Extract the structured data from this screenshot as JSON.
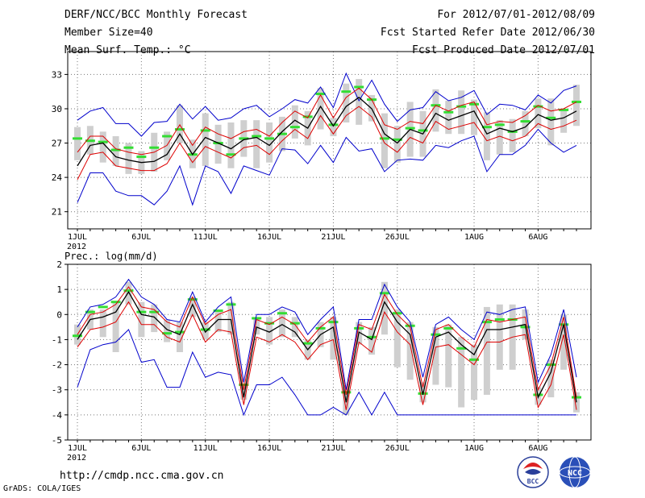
{
  "header": {
    "title": "DERF/NCC/BCC Monthly Forecast",
    "member_size": "Member Size=40",
    "variable": "Mean Surf. Temp.: °C",
    "period": "For 2012/07/01-2012/08/09",
    "started": "Fcst Started Refer Date 2012/06/30",
    "produced": "Fcst Produced Date 2012/07/01"
  },
  "footer": {
    "url": "http://cmdp.ncc.cma.gov.cn",
    "grads": "GrADS: COLA/IGES",
    "logo_bcc_text": "BCC",
    "logo_ncc_text": "NCC"
  },
  "colors": {
    "mean": "#000000",
    "spread": "#dd0000",
    "envelope": "#0000cc",
    "bar": "#cfcfcf",
    "median": "#33dd33",
    "grid": "#777777"
  },
  "chart_data": [
    {
      "type": "line",
      "title": "Mean Surf. Temp.: °C",
      "xlabel": "",
      "ylabel": "",
      "ylim": [
        19.5,
        35
      ],
      "yticks": [
        21,
        24,
        27,
        30,
        33
      ],
      "days": 40,
      "xtick_labels": [
        {
          "day": 1,
          "label": "1JUL"
        },
        {
          "day": 6,
          "label": "6JUL"
        },
        {
          "day": 11,
          "label": "11JUL"
        },
        {
          "day": 16,
          "label": "16JUL"
        },
        {
          "day": 21,
          "label": "21JUL"
        },
        {
          "day": 26,
          "label": "26JUL"
        },
        {
          "day": 32,
          "label": "1AUG"
        },
        {
          "day": 37,
          "label": "6AUG"
        }
      ],
      "year_label": "2012",
      "grid": true,
      "series": [
        {
          "name": "mean",
          "values": [
            25.0,
            26.8,
            27.0,
            25.8,
            25.5,
            25.3,
            25.4,
            26.0,
            27.8,
            26.0,
            27.5,
            27.0,
            26.5,
            27.3,
            27.5,
            26.8,
            28.0,
            29.0,
            28.3,
            30.2,
            28.5,
            30.2,
            31.0,
            30.0,
            27.8,
            27.0,
            28.2,
            27.8,
            29.6,
            29.0,
            29.4,
            29.8,
            27.8,
            28.3,
            28.0,
            28.4,
            29.5,
            29.0,
            29.2,
            29.8
          ]
        },
        {
          "name": "upper spread",
          "values": [
            26.2,
            27.6,
            27.6,
            26.5,
            26.2,
            26.0,
            26.2,
            26.8,
            28.6,
            26.8,
            28.4,
            27.8,
            27.4,
            28.0,
            28.2,
            27.6,
            28.8,
            29.8,
            29.2,
            31.2,
            29.2,
            31.0,
            31.8,
            30.8,
            28.6,
            28.2,
            28.9,
            28.7,
            30.3,
            29.8,
            30.3,
            30.6,
            28.6,
            28.9,
            28.8,
            29.4,
            30.3,
            29.8,
            30.0,
            30.6
          ]
        },
        {
          "name": "lower spread",
          "values": [
            23.8,
            26.0,
            26.2,
            25.0,
            24.8,
            24.6,
            24.6,
            25.2,
            27.0,
            25.3,
            26.7,
            26.2,
            25.7,
            26.6,
            26.8,
            26.0,
            27.2,
            28.2,
            27.4,
            29.4,
            27.8,
            29.4,
            30.2,
            29.3,
            27.0,
            26.2,
            27.5,
            27.0,
            28.9,
            28.2,
            28.5,
            28.8,
            27.2,
            27.6,
            27.2,
            27.6,
            28.7,
            28.2,
            28.5,
            29.0
          ]
        },
        {
          "name": "max envelope",
          "values": [
            29.0,
            29.8,
            30.1,
            28.7,
            28.7,
            27.6,
            28.8,
            28.9,
            30.4,
            29.1,
            30.2,
            29.0,
            29.2,
            30.0,
            30.3,
            29.3,
            30.0,
            30.8,
            30.5,
            31.9,
            30.1,
            33.1,
            30.7,
            32.5,
            30.4,
            28.9,
            29.9,
            30.1,
            31.5,
            30.7,
            31.0,
            31.6,
            29.5,
            30.4,
            30.3,
            29.9,
            31.2,
            30.5,
            31.6,
            32.0
          ]
        },
        {
          "name": "min envelope",
          "values": [
            21.8,
            24.4,
            24.4,
            22.8,
            22.4,
            22.4,
            21.6,
            22.8,
            25.0,
            21.6,
            25.0,
            24.5,
            22.6,
            25.0,
            24.6,
            24.2,
            26.5,
            26.4,
            25.2,
            26.8,
            25.3,
            27.5,
            26.3,
            26.5,
            24.5,
            25.5,
            25.6,
            25.5,
            26.8,
            26.6,
            27.2,
            27.6,
            24.5,
            26.0,
            26.0,
            26.8,
            28.2,
            27.0,
            26.2,
            26.8
          ]
        },
        {
          "name": "bar top",
          "values": [
            28.4,
            28.5,
            28.0,
            27.6,
            27.0,
            26.3,
            27.9,
            28.0,
            30.3,
            27.3,
            29.6,
            28.6,
            28.8,
            29.0,
            29.0,
            28.8,
            29.3,
            30.3,
            29.8,
            31.8,
            29.2,
            32.2,
            32.6,
            31.2,
            29.6,
            28.5,
            30.6,
            29.8,
            31.7,
            30.7,
            31.6,
            30.8,
            29.7,
            29.0,
            29.1,
            29.8,
            30.9,
            30.9,
            29.9,
            32.1
          ]
        },
        {
          "name": "bar bottom",
          "values": [
            25.5,
            26.0,
            25.3,
            25.0,
            24.3,
            24.3,
            24.5,
            25.5,
            27.0,
            24.8,
            25.0,
            25.2,
            24.8,
            25.8,
            24.8,
            25.3,
            26.3,
            27.4,
            26.8,
            28.2,
            27.6,
            28.8,
            28.6,
            28.9,
            24.8,
            25.3,
            25.8,
            25.8,
            28.0,
            27.8,
            27.8,
            27.7,
            25.5,
            26.0,
            26.2,
            27.6,
            28.3,
            26.8,
            27.9,
            28.5
          ]
        },
        {
          "name": "median",
          "values": [
            27.4,
            27.2,
            27.1,
            26.4,
            26.6,
            25.8,
            26.6,
            27.6,
            28.2,
            26.0,
            28.1,
            27.0,
            26.0,
            27.4,
            27.6,
            27.4,
            27.8,
            28.4,
            29.3,
            31.3,
            28.6,
            31.5,
            31.9,
            30.8,
            27.4,
            27.3,
            28.3,
            28.1,
            30.3,
            29.7,
            30.2,
            30.4,
            28.4,
            28.6,
            28.0,
            28.9,
            30.2,
            29.2,
            29.9,
            30.6
          ]
        }
      ]
    },
    {
      "type": "line",
      "title": "Prec.: log(mm/d)",
      "xlabel": "",
      "ylabel": "",
      "ylim": [
        -5,
        2
      ],
      "yticks": [
        -5,
        -4,
        -3,
        -2,
        -1,
        0,
        1,
        2
      ],
      "days": 40,
      "xtick_labels": [
        {
          "day": 1,
          "label": "1JUL"
        },
        {
          "day": 6,
          "label": "6JUL"
        },
        {
          "day": 11,
          "label": "11JUL"
        },
        {
          "day": 16,
          "label": "16JUL"
        },
        {
          "day": 21,
          "label": "21JUL"
        },
        {
          "day": 26,
          "label": "26JUL"
        },
        {
          "day": 32,
          "label": "1AUG"
        },
        {
          "day": 37,
          "label": "6AUG"
        }
      ],
      "year_label": "2012",
      "grid": true,
      "series": [
        {
          "name": "mean",
          "values": [
            -1.0,
            -0.2,
            -0.1,
            0.1,
            0.9,
            0.0,
            -0.1,
            -0.6,
            -0.8,
            0.4,
            -0.7,
            -0.2,
            -0.2,
            -3.3,
            -0.5,
            -0.7,
            -0.4,
            -0.7,
            -1.4,
            -0.8,
            -0.5,
            -3.5,
            -0.7,
            -1.0,
            0.5,
            -0.3,
            -0.8,
            -3.2,
            -0.9,
            -0.7,
            -1.2,
            -1.6,
            -0.6,
            -0.6,
            -0.5,
            -0.4,
            -3.3,
            -2.3,
            -0.4,
            -3.5
          ]
        },
        {
          "name": "upper spread",
          "values": [
            -0.8,
            0.0,
            0.1,
            0.4,
            1.1,
            0.3,
            0.2,
            -0.3,
            -0.5,
            0.7,
            -0.4,
            0.0,
            0.2,
            -3.0,
            -0.2,
            -0.4,
            -0.1,
            -0.4,
            -1.1,
            -0.5,
            -0.1,
            -3.2,
            -0.4,
            -0.6,
            0.8,
            0.0,
            -0.5,
            -2.9,
            -0.6,
            -0.4,
            -0.9,
            -1.3,
            -0.2,
            -0.3,
            -0.2,
            -0.1,
            -3.0,
            -2.0,
            -0.1,
            -3.3
          ]
        },
        {
          "name": "lower spread",
          "values": [
            -1.3,
            -0.6,
            -0.5,
            -0.3,
            0.5,
            -0.4,
            -0.4,
            -0.9,
            -1.1,
            0.0,
            -1.1,
            -0.6,
            -0.7,
            -3.6,
            -0.9,
            -1.1,
            -0.8,
            -1.1,
            -1.8,
            -1.2,
            -1.0,
            -3.8,
            -1.1,
            -1.5,
            0.1,
            -0.7,
            -1.2,
            -3.6,
            -1.3,
            -1.2,
            -1.6,
            -2.0,
            -1.1,
            -1.1,
            -0.9,
            -0.8,
            -3.7,
            -2.8,
            -0.8,
            -3.8
          ]
        },
        {
          "name": "max envelope",
          "values": [
            -0.5,
            0.3,
            0.4,
            0.7,
            1.4,
            0.7,
            0.4,
            -0.2,
            -0.3,
            0.9,
            -0.3,
            0.3,
            0.7,
            -2.7,
            0.0,
            0.0,
            0.3,
            0.1,
            -0.8,
            -0.2,
            0.3,
            -3.0,
            -0.2,
            -0.2,
            1.2,
            0.3,
            -0.3,
            -2.5,
            -0.4,
            -0.1,
            -0.6,
            -1.0,
            0.1,
            0.0,
            0.2,
            0.3,
            -2.7,
            -1.6,
            0.2,
            -2.5
          ]
        },
        {
          "name": "min envelope",
          "values": [
            -2.9,
            -1.4,
            -1.2,
            -1.1,
            -0.6,
            -1.9,
            -1.8,
            -2.9,
            -2.9,
            -1.5,
            -2.5,
            -2.3,
            -2.4,
            -4.0,
            -2.8,
            -2.8,
            -2.5,
            -3.2,
            -4.0,
            -4.0,
            -3.7,
            -4.0,
            -3.1,
            -4.0,
            -3.1,
            -4.0,
            -4.0,
            -4.0,
            -4.0,
            -4.0,
            -4.0,
            -4.0,
            -4.0,
            -4.0,
            -4.0,
            -4.0,
            -4.0,
            -4.0,
            -4.0,
            -4.0
          ]
        },
        {
          "name": "bar top",
          "values": [
            -0.4,
            0.2,
            0.2,
            0.5,
            1.3,
            0.5,
            0.4,
            -0.2,
            -0.3,
            0.7,
            -0.3,
            0.1,
            0.5,
            -2.8,
            -0.1,
            -0.1,
            0.2,
            -0.1,
            -1.0,
            -0.3,
            -0.1,
            -3.0,
            -0.3,
            -0.5,
            1.3,
            0.2,
            -0.3,
            -2.7,
            -0.5,
            -0.4,
            -0.9,
            -1.2,
            0.3,
            0.4,
            0.4,
            0.2,
            -2.9,
            -1.8,
            0.0,
            -3.1
          ]
        },
        {
          "name": "bar bottom",
          "values": [
            -1.2,
            -0.6,
            -0.9,
            -1.5,
            0.4,
            -0.9,
            -0.7,
            -1.1,
            -1.5,
            -0.1,
            -1.0,
            -0.7,
            -0.8,
            -3.4,
            -0.8,
            -1.2,
            -0.9,
            -0.9,
            -1.8,
            -1.3,
            -1.8,
            -4.0,
            -1.2,
            -1.6,
            -0.8,
            -2.1,
            -2.6,
            -3.5,
            -2.8,
            -2.9,
            -3.7,
            -3.4,
            -3.2,
            -2.2,
            -2.2,
            -1.0,
            -3.6,
            -3.3,
            -2.2,
            -3.9
          ]
        },
        {
          "name": "median",
          "values": [
            -0.85,
            0.1,
            0.3,
            0.5,
            0.95,
            0.1,
            0.1,
            -0.75,
            -0.7,
            0.6,
            -0.6,
            0.15,
            0.4,
            -2.8,
            -0.15,
            -0.35,
            0.05,
            -0.35,
            -1.15,
            -0.55,
            -0.3,
            -3.1,
            -0.55,
            -0.9,
            0.85,
            0.05,
            -0.45,
            -3.15,
            -0.8,
            -0.55,
            -1.35,
            -1.8,
            -0.3,
            -0.2,
            -0.2,
            -0.5,
            -3.2,
            -2.0,
            -0.4,
            -3.3
          ]
        }
      ]
    }
  ]
}
